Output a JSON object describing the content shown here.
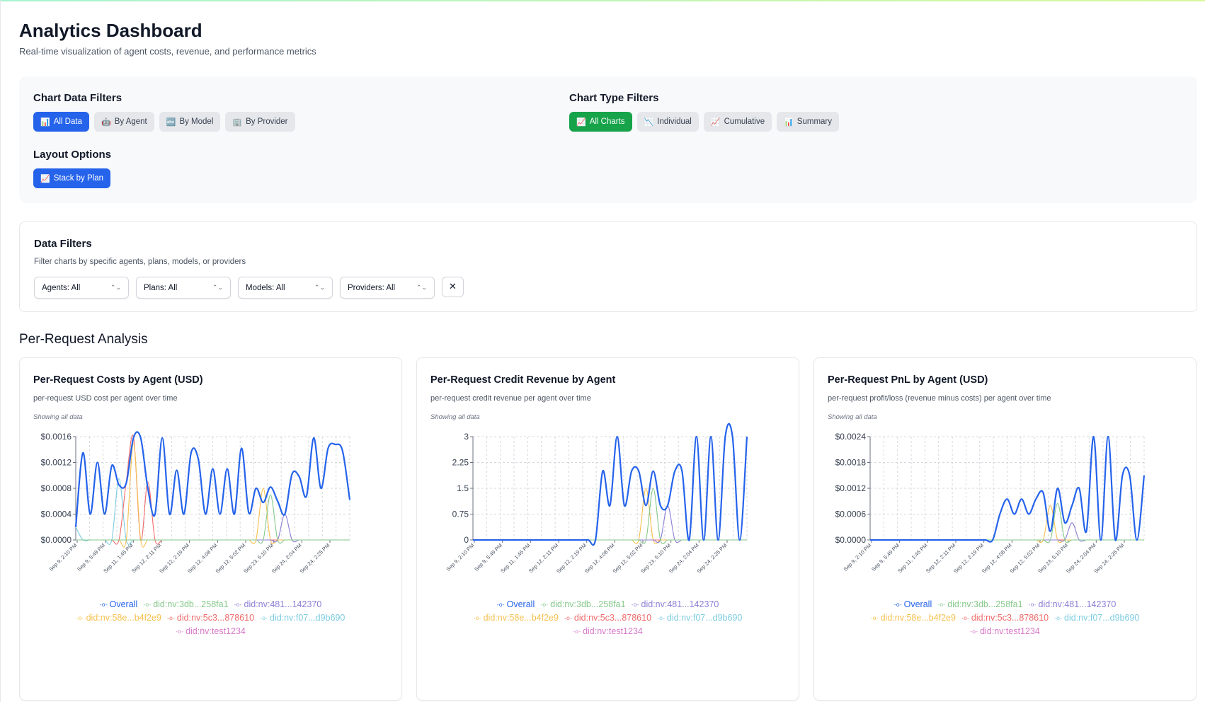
{
  "header": {
    "title": "Analytics Dashboard",
    "subtitle": "Real-time visualization of agent costs, revenue, and performance metrics"
  },
  "chart_data_filters": {
    "heading": "Chart Data Filters",
    "buttons": [
      {
        "icon": "📊",
        "label": "All Data",
        "active": true
      },
      {
        "icon": "🤖",
        "label": "By Agent",
        "active": false
      },
      {
        "icon": "🔤",
        "label": "By Model",
        "active": false
      },
      {
        "icon": "🏢",
        "label": "By Provider",
        "active": false
      }
    ]
  },
  "chart_type_filters": {
    "heading": "Chart Type Filters",
    "buttons": [
      {
        "icon": "📈",
        "label": "All Charts",
        "active": true
      },
      {
        "icon": "📉",
        "label": "Individual",
        "active": false
      },
      {
        "icon": "📈",
        "label": "Cumulative",
        "active": false
      },
      {
        "icon": "📊",
        "label": "Summary",
        "active": false
      }
    ]
  },
  "layout_options": {
    "heading": "Layout Options",
    "button": {
      "icon": "📈",
      "label": "Stack by Plan",
      "active": true
    }
  },
  "data_filters": {
    "title": "Data Filters",
    "description": "Filter charts by specific agents, plans, models, or providers",
    "selects": [
      "Agents: All",
      "Plans: All",
      "Models: All",
      "Providers: All"
    ],
    "clear_icon": "✕"
  },
  "section_title": "Per-Request Analysis",
  "colors": {
    "primary_blue": "#2563eb",
    "active_green": "#16a34a",
    "legend": [
      "#2563eb",
      "#86c98a",
      "#8b7fd4",
      "#f6c04f",
      "#ef6b6b",
      "#7ccbe0",
      "#d779c8"
    ]
  },
  "chart_data": [
    {
      "type": "line",
      "title": "Per-Request Costs by Agent (USD)",
      "description": "per-request USD cost per agent over time",
      "note": "Showing all data",
      "y_ticks": [
        "$0.0016",
        "$0.0012",
        "$0.0008",
        "$0.0004",
        "$0.0000"
      ],
      "ylim": [
        0,
        0.0016
      ],
      "x_ticks": [
        "Sep 9, 2:10 PM",
        "Sep 9, 5:49 PM",
        "Sep 11, 1:45 PM",
        "Sep 12, 2:11 PM",
        "Sep 12, 2:19 PM",
        "Sep 12, 4:08 PM",
        "Sep 12, 5:02 PM",
        "Sep 23, 5:10 PM",
        "Sep 24, 2:04 PM",
        "Sep 24, 2:25 PM"
      ],
      "grid": true,
      "legend": "bottom",
      "series": [
        {
          "name": "Overall",
          "color": "#2563eb",
          "values": [
            0.0002,
            0.00135,
            0.0004,
            0.0012,
            0.0004,
            0.00115,
            0.00085,
            0.00088,
            0.00158,
            0.00158,
            0.0008,
            0.0004,
            0.00158,
            0.0004,
            0.00108,
            0.0004,
            0.00135,
            0.00125,
            0.0004,
            0.0011,
            0.0004,
            0.0011,
            0.0004,
            0.00142,
            0.00042,
            0.0008,
            0.00058,
            0.00082,
            0.0006,
            0.0004,
            0.00102,
            0.00098,
            0.00068,
            0.00158,
            0.0008,
            0.00142,
            0.00148,
            0.00138,
            0.00062
          ]
        },
        {
          "name": "did:nv:3db...258fa1",
          "color": "#86c98a",
          "values": [
            0,
            0,
            0,
            0,
            0,
            0,
            0,
            0,
            0,
            0,
            0,
            0,
            0,
            0,
            0,
            0,
            0,
            0,
            0,
            0,
            0,
            0,
            0,
            0,
            0,
            0,
            0,
            0.0007,
            0,
            0,
            0,
            0,
            0,
            0,
            0,
            0,
            0,
            0,
            0
          ]
        },
        {
          "name": "did:nv:481...142370",
          "color": "#8b7fd4",
          "values": [
            0,
            0,
            0,
            0,
            0,
            0,
            0,
            0,
            0,
            0,
            0,
            0,
            0,
            0,
            0,
            0,
            0,
            0,
            0,
            0,
            0,
            0,
            0,
            0,
            0,
            0,
            0,
            0,
            0,
            0.0004,
            0,
            0,
            0,
            0,
            0,
            0,
            0,
            0,
            0
          ]
        },
        {
          "name": "did:nv:58e...b4f2e9",
          "color": "#f6c04f",
          "values": [
            0,
            0,
            0,
            0,
            0,
            0,
            0,
            0,
            0.0015,
            0,
            0,
            0,
            0,
            0,
            0,
            0,
            0,
            0,
            0,
            0,
            0,
            0,
            0,
            0,
            0,
            0,
            0.0008,
            0,
            0,
            0,
            0,
            0,
            0,
            0,
            0,
            0,
            0,
            0,
            0
          ]
        },
        {
          "name": "did:nv:5c3...878610",
          "color": "#ef6b6b",
          "values": [
            0,
            0,
            0,
            0,
            0,
            0,
            0,
            0.0009,
            0.0016,
            0,
            0.0009,
            0,
            0,
            0,
            0,
            0,
            0,
            0,
            0,
            0,
            0,
            0,
            0,
            0,
            0,
            0,
            0,
            0,
            0,
            0,
            0,
            0,
            0,
            0,
            0,
            0,
            0,
            0,
            0
          ]
        },
        {
          "name": "did:nv:f07...d9b690",
          "color": "#7ccbe0",
          "values": [
            0.0002,
            0,
            0,
            0,
            0,
            0,
            0.00095,
            0,
            0,
            0,
            0,
            0,
            0,
            0,
            0,
            0,
            0,
            0,
            0,
            0,
            0,
            0,
            0,
            0,
            0,
            0,
            0,
            0,
            0,
            0,
            0,
            0,
            0,
            0,
            0,
            0,
            0,
            0,
            0
          ]
        },
        {
          "name": "did:nv:test1234",
          "color": "#d779c8",
          "values": [
            0,
            0,
            0,
            0,
            0,
            0,
            0,
            0,
            0,
            0,
            0,
            0,
            0,
            0,
            0,
            0,
            0,
            0,
            0,
            0,
            0,
            0,
            0,
            0,
            0,
            0,
            0,
            0,
            0,
            0,
            0,
            0,
            0,
            0,
            0,
            0,
            0,
            0,
            0
          ]
        }
      ]
    },
    {
      "type": "line",
      "title": "Per-Request Credit Revenue by Agent",
      "description": "per-request credit revenue per agent over time",
      "note": "Showing all data",
      "y_ticks": [
        "3",
        "2.25",
        "1.5",
        "0.75",
        "0"
      ],
      "ylim": [
        0,
        3
      ],
      "x_ticks": [
        "Sep 9, 2:10 PM",
        "Sep 9, 5:49 PM",
        "Sep 11, 1:45 PM",
        "Sep 12, 2:11 PM",
        "Sep 12, 2:19 PM",
        "Sep 12, 4:08 PM",
        "Sep 12, 5:02 PM",
        "Sep 23, 5:10 PM",
        "Sep 24, 2:04 PM",
        "Sep 24, 2:25 PM"
      ],
      "grid": true,
      "legend": "bottom",
      "series": [
        {
          "name": "Overall",
          "color": "#2563eb",
          "values": [
            0,
            0,
            0,
            0,
            0,
            0,
            0,
            0,
            0,
            0,
            0,
            0,
            0,
            0,
            0,
            0,
            0,
            0,
            2,
            1,
            3,
            1,
            2,
            2,
            1,
            2,
            1,
            1,
            2,
            2,
            0,
            3,
            0,
            3,
            0,
            3,
            3,
            0,
            3
          ]
        },
        {
          "name": "did:nv:3db...258fa1",
          "color": "#86c98a",
          "values": [
            0,
            0,
            0,
            0,
            0,
            0,
            0,
            0,
            0,
            0,
            0,
            0,
            0,
            0,
            0,
            0,
            0,
            0,
            0,
            0,
            0,
            0,
            0,
            0,
            0,
            1.5,
            0,
            0,
            0,
            0,
            0,
            0,
            0,
            0,
            0,
            0,
            0,
            0,
            0
          ]
        },
        {
          "name": "did:nv:481...142370",
          "color": "#8b7fd4",
          "values": [
            0,
            0,
            0,
            0,
            0,
            0,
            0,
            0,
            0,
            0,
            0,
            0,
            0,
            0,
            0,
            0,
            0,
            0,
            0,
            0,
            0,
            0,
            0,
            0,
            0,
            0,
            0,
            1,
            0,
            0,
            0,
            0,
            0,
            0,
            0,
            0,
            0,
            0,
            0
          ]
        },
        {
          "name": "did:nv:58e...b4f2e9",
          "color": "#f6c04f",
          "values": [
            0,
            0,
            0,
            0,
            0,
            0,
            0,
            0,
            0,
            0,
            0,
            0,
            0,
            0,
            0,
            0,
            0,
            0,
            0,
            0,
            0,
            0,
            0,
            0,
            1.5,
            0,
            0,
            0,
            0,
            0,
            0,
            0,
            0,
            0,
            0,
            0,
            0,
            0,
            0
          ]
        },
        {
          "name": "did:nv:5c3...878610",
          "color": "#ef6b6b",
          "values": [
            0,
            0,
            0,
            0,
            0,
            0,
            0,
            0,
            0,
            0,
            0,
            0,
            0,
            0,
            0,
            0,
            0,
            0,
            0,
            0,
            0,
            0,
            0,
            0,
            0,
            0,
            0,
            0,
            0,
            0,
            0,
            0,
            0,
            0,
            0,
            0,
            0,
            0,
            0
          ]
        },
        {
          "name": "did:nv:f07...d9b690",
          "color": "#7ccbe0",
          "values": [
            0,
            0,
            0,
            0,
            0,
            0,
            0,
            0,
            0,
            0,
            0,
            0,
            0,
            0,
            0,
            0,
            0,
            0,
            0,
            0,
            0,
            0,
            0,
            0,
            0,
            0,
            0,
            0,
            0,
            0,
            0,
            0,
            0,
            0,
            0,
            0,
            0,
            0,
            0
          ]
        },
        {
          "name": "did:nv:test1234",
          "color": "#d779c8",
          "values": [
            0,
            0,
            0,
            0,
            0,
            0,
            0,
            0,
            0,
            0,
            0,
            0,
            0,
            0,
            0,
            0,
            0,
            0,
            0,
            0,
            0,
            0,
            0,
            0,
            0,
            0,
            0,
            0,
            0,
            0,
            0,
            0,
            0,
            0,
            0,
            0,
            0,
            0,
            0
          ]
        }
      ]
    },
    {
      "type": "line",
      "title": "Per-Request PnL by Agent (USD)",
      "description": "per-request profit/loss (revenue minus costs) per agent over time",
      "note": "Showing all data",
      "y_ticks": [
        "$0.0024",
        "$0.0018",
        "$0.0012",
        "$0.0006",
        "$0.0000"
      ],
      "ylim": [
        0,
        0.0024
      ],
      "x_ticks": [
        "Sep 9, 2:10 PM",
        "Sep 9, 5:49 PM",
        "Sep 11, 1:45 PM",
        "Sep 12, 2:11 PM",
        "Sep 12, 2:19 PM",
        "Sep 12, 4:08 PM",
        "Sep 12, 5:02 PM",
        "Sep 23, 5:10 PM",
        "Sep 24, 2:04 PM",
        "Sep 24, 2:25 PM"
      ],
      "grid": true,
      "legend": "bottom",
      "series": [
        {
          "name": "Overall",
          "color": "#2563eb",
          "values": [
            0,
            0,
            0,
            0,
            0,
            0,
            0,
            0,
            0,
            0,
            0,
            0,
            0,
            0,
            0,
            0,
            0,
            0,
            0.0006,
            0.00095,
            0.0006,
            0.00095,
            0.0006,
            0.00095,
            0.0011,
            0.0002,
            0.0012,
            0.0004,
            0.0008,
            0.0012,
            0.0002,
            0.0024,
            0,
            0.0024,
            0,
            0.0015,
            0.0015,
            0,
            0.0015
          ]
        },
        {
          "name": "did:nv:3db...258fa1",
          "color": "#86c98a",
          "values": [
            0,
            0,
            0,
            0,
            0,
            0,
            0,
            0,
            0,
            0,
            0,
            0,
            0,
            0,
            0,
            0,
            0,
            0,
            0,
            0,
            0,
            0,
            0,
            0,
            0,
            0,
            0.00085,
            0,
            0,
            0,
            0,
            0,
            0,
            0,
            0,
            0,
            0,
            0,
            0
          ]
        },
        {
          "name": "did:nv:481...142370",
          "color": "#8b7fd4",
          "values": [
            0,
            0,
            0,
            0,
            0,
            0,
            0,
            0,
            0,
            0,
            0,
            0,
            0,
            0,
            0,
            0,
            0,
            0,
            0,
            0,
            0,
            0,
            0,
            0,
            0,
            0,
            0,
            0,
            0.0004,
            0,
            0,
            0,
            0,
            0,
            0,
            0,
            0,
            0,
            0
          ]
        },
        {
          "name": "did:nv:58e...b4f2e9",
          "color": "#f6c04f",
          "values": [
            0,
            0,
            0,
            0,
            0,
            0,
            0,
            0,
            0,
            0,
            0,
            0,
            0,
            0,
            0,
            0,
            0,
            0,
            0,
            0,
            0,
            0,
            0,
            0,
            0,
            0.0008,
            0,
            0,
            0,
            0,
            0,
            0,
            0,
            0,
            0,
            0,
            0,
            0,
            0
          ]
        },
        {
          "name": "did:nv:5c3...878610",
          "color": "#ef6b6b",
          "values": [
            0,
            0,
            0,
            0,
            0,
            0,
            0,
            0,
            0,
            0,
            0,
            0,
            0,
            0,
            0,
            0,
            0,
            0,
            0,
            0,
            0,
            0,
            0,
            0,
            0,
            0,
            0,
            0,
            0,
            0,
            0,
            0,
            0,
            0,
            0,
            0,
            0,
            0,
            0
          ]
        },
        {
          "name": "did:nv:f07...d9b690",
          "color": "#7ccbe0",
          "values": [
            0,
            0,
            0,
            0,
            0,
            0,
            0,
            0,
            0,
            0,
            0,
            0,
            0,
            0,
            0,
            0,
            0,
            0,
            0,
            0,
            0,
            0,
            0,
            0,
            0,
            0,
            0,
            0,
            0,
            0,
            0,
            0,
            0,
            0,
            0,
            0,
            0,
            0,
            0
          ]
        },
        {
          "name": "did:nv:test1234",
          "color": "#d779c8",
          "values": [
            0,
            0,
            0,
            0,
            0,
            0,
            0,
            0,
            0,
            0,
            0,
            0,
            0,
            0,
            0,
            0,
            0,
            0,
            0,
            0,
            0,
            0,
            0,
            0,
            0,
            0,
            0,
            0,
            0,
            0,
            0,
            0,
            0,
            0,
            0,
            0,
            0,
            0,
            0
          ]
        }
      ]
    }
  ]
}
